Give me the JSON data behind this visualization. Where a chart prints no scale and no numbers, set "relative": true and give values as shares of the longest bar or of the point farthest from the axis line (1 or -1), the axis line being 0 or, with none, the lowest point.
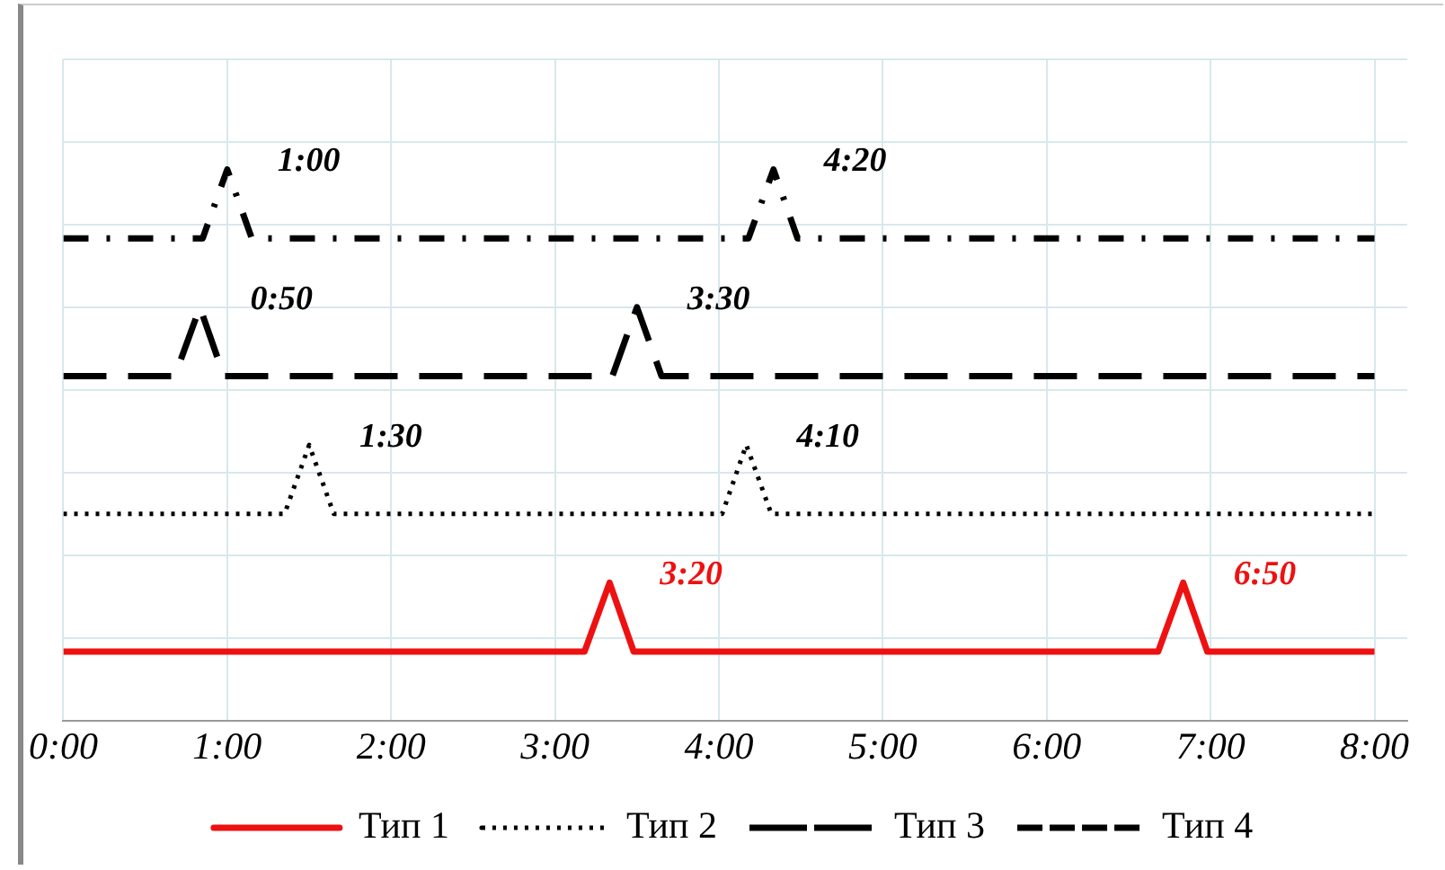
{
  "chart_data": {
    "type": "line",
    "relative": true,
    "grid": true,
    "legend": "bottom",
    "tick_labels": "x",
    "marker": "none",
    "xlim": [
      0,
      8.2
    ],
    "xticks": [
      {
        "value": 0,
        "label": "0:00"
      },
      {
        "value": 1,
        "label": "1:00"
      },
      {
        "value": 2,
        "label": "2:00"
      },
      {
        "value": 3,
        "label": "3:00"
      },
      {
        "value": 4,
        "label": "4:00"
      },
      {
        "value": 5,
        "label": "5:00"
      },
      {
        "value": 6,
        "label": "6:00"
      },
      {
        "value": 7,
        "label": "7:00"
      },
      {
        "value": 8,
        "label": "8:00"
      }
    ],
    "series": [
      {
        "name": "Тип 1",
        "color": "#ee1111",
        "line_style": "solid",
        "x": [
          0,
          3.18,
          3.333,
          3.48,
          6.68,
          6.833,
          6.98,
          8
        ],
        "values": [
          0.125,
          0.125,
          0.25,
          0.125,
          0.125,
          0.25,
          0.125,
          0.125
        ]
      },
      {
        "name": "Тип 2",
        "color": "#000000",
        "line_style": "dotted",
        "x": [
          0,
          1.35,
          1.5,
          1.65,
          4.02,
          4.167,
          4.32,
          8
        ],
        "values": [
          0.375,
          0.375,
          0.5,
          0.375,
          0.375,
          0.5,
          0.375,
          0.375
        ]
      },
      {
        "name": "Тип 3",
        "color": "#000000",
        "line_style": "dashed",
        "x": [
          0,
          0.68,
          0.833,
          0.98,
          3.35,
          3.5,
          3.65,
          8
        ],
        "values": [
          0.625,
          0.625,
          0.75,
          0.625,
          0.625,
          0.75,
          0.625,
          0.625
        ]
      },
      {
        "name": "Тип 4",
        "color": "#000000",
        "line_style": "dashdot",
        "x": [
          0,
          0.85,
          1.0,
          1.15,
          4.18,
          4.333,
          4.48,
          8
        ],
        "values": [
          0.875,
          0.875,
          1,
          0.875,
          0.875,
          1,
          0.875,
          0.875
        ]
      }
    ],
    "annotations": [
      {
        "text": "1:00",
        "x": 1.0,
        "y": 1
      },
      {
        "text": "4:20",
        "x": 4.333,
        "y": 1
      },
      {
        "text": "0:50",
        "x": 0.833,
        "y": 0.75
      },
      {
        "text": "3:30",
        "x": 3.5,
        "y": 0.75
      },
      {
        "text": "1:30",
        "x": 1.5,
        "y": 0.5
      },
      {
        "text": "4:10",
        "x": 4.167,
        "y": 0.5
      },
      {
        "text": "3:20",
        "x": 3.333,
        "y": 0.25
      },
      {
        "text": "6:50",
        "x": 6.833,
        "y": 0.25
      }
    ]
  }
}
